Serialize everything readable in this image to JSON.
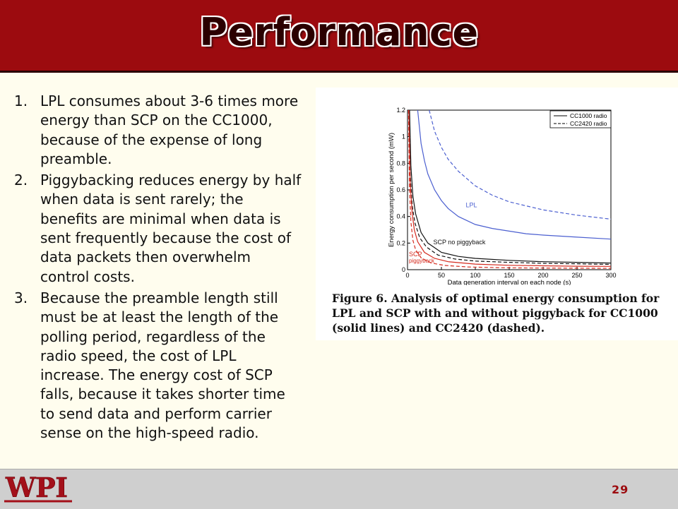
{
  "slide": {
    "title": "Performance",
    "items": [
      {
        "num": "1.",
        "text": "LPL consumes about 3-6 times more energy than SCP on the CC1000, because of the expense of long preamble."
      },
      {
        "num": "2.",
        "text": "Piggybacking reduces energy by half when data is sent rarely; the benefits are minimal when data is sent frequently because the cost of data packets then overwhelm control costs."
      },
      {
        "num": "3.",
        "text": "Because the preamble length still must be at least the length of the polling period, regardless of the radio speed, the cost of LPL increase. The energy cost of SCP falls, because it takes shorter time to send data and perform carrier sense on the high-speed radio."
      }
    ],
    "figure_caption": "Figure 6.  Analysis of optimal energy consumption for LPL and SCP with and without piggyback for CC1000 (solid lines) and CC2420 (dashed).",
    "page_number": "29",
    "logo_text": "WPI"
  },
  "chart_data": {
    "type": "line",
    "xlabel": "Data generation interval on each node (s)",
    "ylabel": "Energy consumption per second (mW)",
    "xlim": [
      0,
      300
    ],
    "ylim": [
      0,
      1.2
    ],
    "x_ticks": [
      "0",
      "50",
      "100",
      "150",
      "200",
      "250",
      "300"
    ],
    "y_ticks": [
      "0",
      "0.2",
      "0.4",
      "0.6",
      "0.8",
      "1",
      "1.2"
    ],
    "legend": [
      "CC1000 radio",
      "CC2420 radio"
    ],
    "legend_position": "top-right",
    "annotations": [
      "LPL",
      "SCP no piggyback",
      "SCP piggyback"
    ],
    "colors": {
      "lpl": "#4b5fd0",
      "scp_no_piggyback": "#111111",
      "scp_piggyback": "#d42a1e"
    },
    "series": [
      {
        "group": "LPL",
        "radio": "CC1000",
        "style": "solid",
        "color": "#4b5fd0",
        "x": [
          15,
          20,
          25,
          30,
          40,
          50,
          60,
          75,
          100,
          125,
          150,
          175,
          200,
          250,
          300
        ],
        "y": [
          1.2,
          0.95,
          0.82,
          0.72,
          0.6,
          0.52,
          0.46,
          0.4,
          0.34,
          0.31,
          0.29,
          0.27,
          0.26,
          0.245,
          0.23
        ]
      },
      {
        "group": "LPL",
        "radio": "CC2420",
        "style": "dashed",
        "color": "#4b5fd0",
        "x": [
          32,
          40,
          50,
          60,
          75,
          100,
          125,
          150,
          175,
          200,
          250,
          300
        ],
        "y": [
          1.2,
          1.04,
          0.92,
          0.83,
          0.74,
          0.63,
          0.56,
          0.51,
          0.48,
          0.45,
          0.41,
          0.38
        ]
      },
      {
        "group": "SCP no piggyback",
        "radio": "CC1000",
        "style": "solid",
        "color": "#111111",
        "x": [
          3,
          5,
          8,
          12,
          20,
          30,
          50,
          75,
          100,
          150,
          200,
          250,
          300
        ],
        "y": [
          1.2,
          0.78,
          0.55,
          0.42,
          0.28,
          0.2,
          0.13,
          0.1,
          0.085,
          0.07,
          0.06,
          0.055,
          0.05
        ]
      },
      {
        "group": "SCP no piggyback",
        "radio": "CC2420",
        "style": "dashed",
        "color": "#111111",
        "x": [
          2,
          4,
          7,
          11,
          18,
          28,
          45,
          70,
          100,
          150,
          200,
          250,
          300
        ],
        "y": [
          1.2,
          0.72,
          0.48,
          0.35,
          0.24,
          0.17,
          0.11,
          0.08,
          0.065,
          0.055,
          0.048,
          0.044,
          0.04
        ]
      },
      {
        "group": "SCP piggyback",
        "radio": "CC1000",
        "style": "solid",
        "color": "#d42a1e",
        "x": [
          2,
          4,
          7,
          10,
          15,
          25,
          40,
          60,
          100,
          150,
          200,
          250,
          300
        ],
        "y": [
          1.2,
          0.65,
          0.42,
          0.3,
          0.21,
          0.13,
          0.085,
          0.06,
          0.042,
          0.033,
          0.029,
          0.026,
          0.025
        ]
      },
      {
        "group": "SCP piggyback",
        "radio": "CC2420",
        "style": "dashed",
        "color": "#d42a1e",
        "x": [
          1.5,
          3,
          5,
          8,
          12,
          20,
          35,
          55,
          90,
          150,
          200,
          250,
          300
        ],
        "y": [
          1.2,
          0.6,
          0.36,
          0.22,
          0.15,
          0.09,
          0.05,
          0.032,
          0.02,
          0.014,
          0.012,
          0.011,
          0.01
        ]
      }
    ]
  }
}
